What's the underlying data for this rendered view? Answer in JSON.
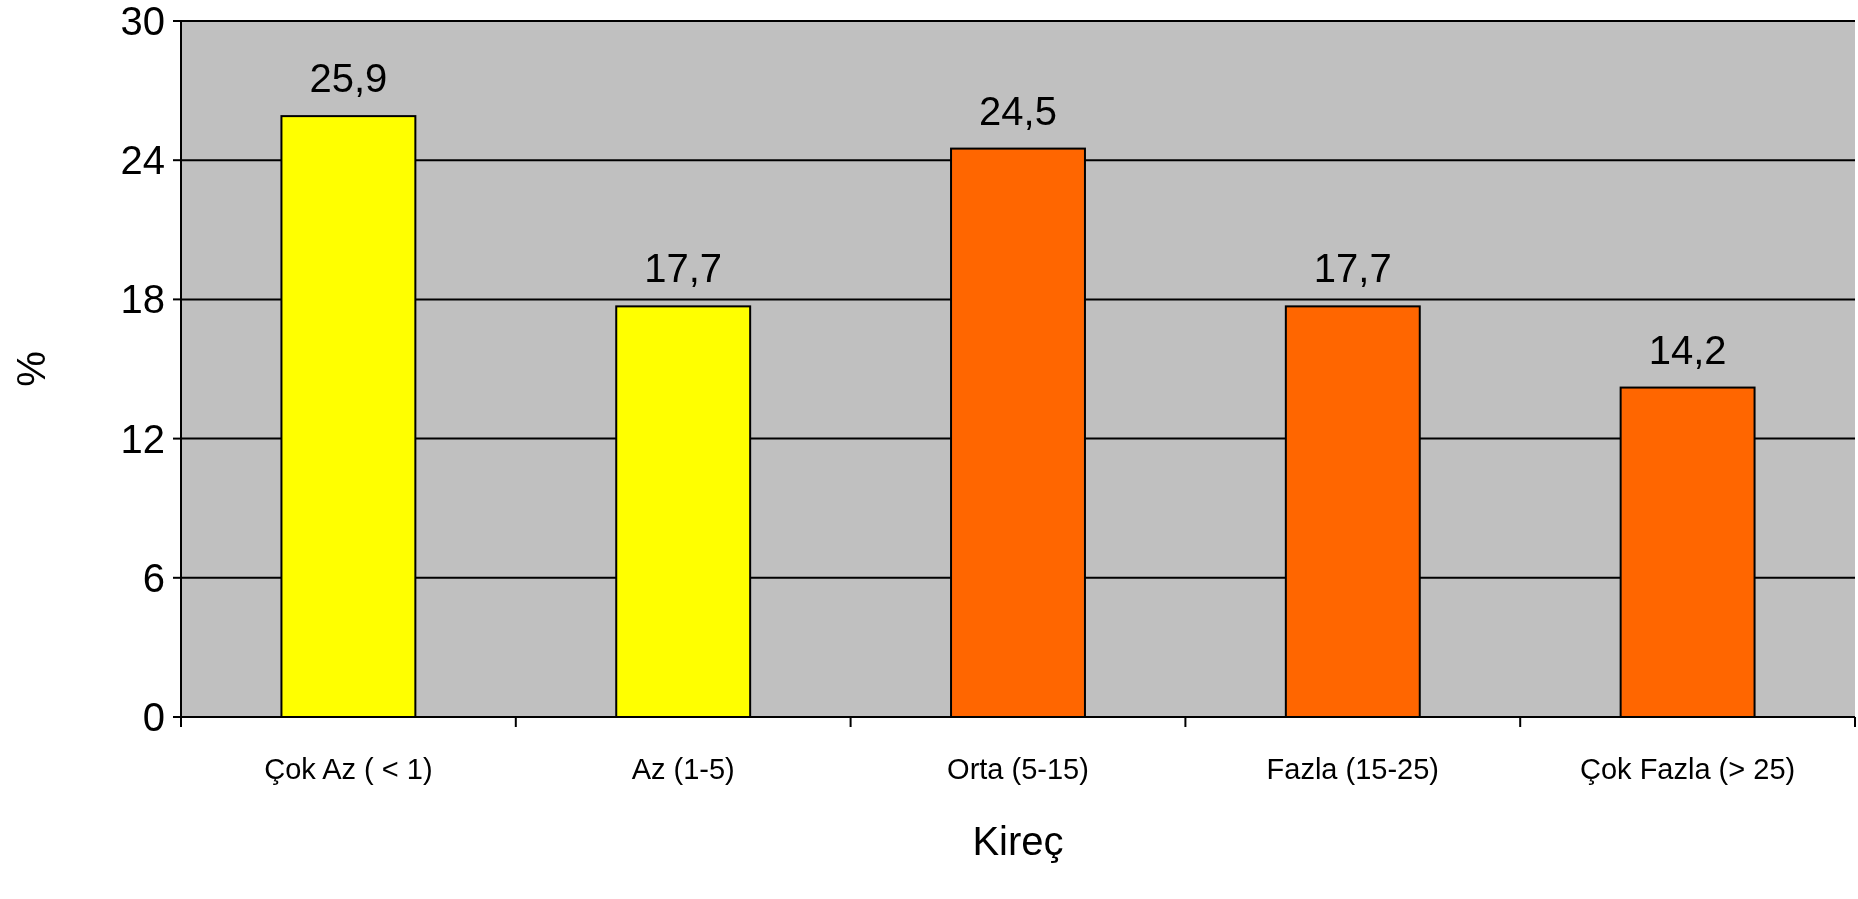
{
  "chart_data": {
    "type": "bar",
    "xlabel": "Kireç",
    "ylabel": "%",
    "categories": [
      "Çok Az ( < 1)",
      "Az (1-5)",
      "Orta (5-15)",
      "Fazla (15-25)",
      "Çok Fazla (> 25)"
    ],
    "values": [
      25.9,
      17.7,
      24.5,
      17.7,
      14.2
    ],
    "colors": [
      "#ffff00",
      "#ffff00",
      "#ff6600",
      "#ff6600",
      "#ff6600"
    ],
    "value_labels": [
      "25,9",
      "17,7",
      "24,5",
      "17,7",
      "14,2"
    ],
    "ylim": [
      0,
      30
    ],
    "yticks": [
      0,
      6,
      12,
      18,
      24,
      30
    ],
    "grid": "y"
  }
}
